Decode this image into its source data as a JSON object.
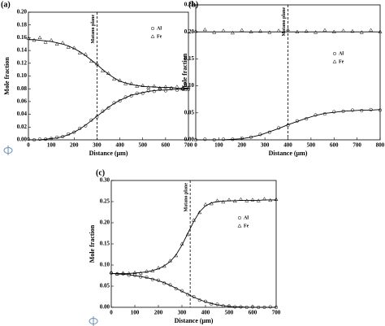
{
  "chart_data": [
    {
      "type": "scatter",
      "panel_label": "(a)",
      "xlabel": "Distance (μm)",
      "ylabel": "Mole fraction",
      "xlim": [
        0,
        700
      ],
      "xticks": [
        0,
        100,
        200,
        300,
        400,
        500,
        600,
        700
      ],
      "ylim": [
        0,
        0.2
      ],
      "yticks": [
        {
          "value": 0,
          "label": "0.00"
        },
        {
          "value": 0.02,
          "label": "0.02"
        },
        {
          "value": 0.04,
          "label": "0.04"
        },
        {
          "value": 0.06,
          "label": "0.06"
        },
        {
          "value": 0.08,
          "label": "0.08"
        },
        {
          "value": 0.1,
          "label": "0.10"
        },
        {
          "value": 0.12,
          "label": "0.12"
        },
        {
          "value": 0.14,
          "label": "0.14"
        },
        {
          "value": 0.16,
          "label": "0.16"
        },
        {
          "value": 0.18,
          "label": "0.18"
        },
        {
          "value": 0.2,
          "label": "0.20"
        }
      ],
      "annotation": {
        "x": 300,
        "text": "Matano plane"
      },
      "x": [
        0,
        25,
        50,
        75,
        100,
        125,
        150,
        175,
        200,
        225,
        250,
        275,
        300,
        325,
        350,
        375,
        400,
        425,
        450,
        475,
        500,
        525,
        550,
        575,
        600,
        625,
        650,
        675,
        700
      ],
      "series": [
        {
          "name": "Al",
          "marker": "circle",
          "color": "#000000",
          "values": [
            0.001,
            0.0,
            0.001,
            0.001,
            0.002,
            0.004,
            0.005,
            0.009,
            0.012,
            0.018,
            0.022,
            0.031,
            0.036,
            0.045,
            0.05,
            0.058,
            0.061,
            0.067,
            0.069,
            0.073,
            0.073,
            0.077,
            0.076,
            0.079,
            0.077,
            0.08,
            0.078,
            0.08,
            0.079
          ],
          "fit": [
            0.0,
            0.0,
            0.0,
            0.001,
            0.002,
            0.003,
            0.005,
            0.008,
            0.012,
            0.017,
            0.023,
            0.03,
            0.037,
            0.044,
            0.051,
            0.057,
            0.062,
            0.066,
            0.07,
            0.072,
            0.074,
            0.076,
            0.077,
            0.078,
            0.078,
            0.079,
            0.079,
            0.079,
            0.08
          ]
        },
        {
          "name": "Fe",
          "marker": "triangle",
          "color": "#000000",
          "values": [
            0.159,
            0.156,
            0.16,
            0.153,
            0.156,
            0.15,
            0.152,
            0.145,
            0.144,
            0.136,
            0.134,
            0.123,
            0.119,
            0.108,
            0.104,
            0.095,
            0.093,
            0.088,
            0.088,
            0.084,
            0.085,
            0.082,
            0.084,
            0.081,
            0.083,
            0.081,
            0.083,
            0.08,
            0.082
          ],
          "fit": [
            0.157,
            0.157,
            0.156,
            0.155,
            0.154,
            0.152,
            0.15,
            0.147,
            0.143,
            0.138,
            0.132,
            0.125,
            0.118,
            0.11,
            0.103,
            0.097,
            0.092,
            0.089,
            0.087,
            0.085,
            0.084,
            0.083,
            0.083,
            0.082,
            0.082,
            0.082,
            0.081,
            0.081,
            0.081
          ]
        }
      ]
    },
    {
      "type": "scatter",
      "panel_label": "(b)",
      "xlabel": "Distance (μm)",
      "ylabel": "Mole fraction",
      "xlim": [
        0,
        800
      ],
      "xticks": [
        0,
        100,
        200,
        300,
        400,
        500,
        600,
        700,
        800
      ],
      "ylim": [
        0,
        0.25
      ],
      "yticks": [
        {
          "value": 0,
          "label": "0.00"
        },
        {
          "value": 0.05,
          "label": "0.05"
        },
        {
          "value": 0.1,
          "label": "0.10"
        },
        {
          "value": 0.15,
          "label": "0.15"
        },
        {
          "value": 0.2,
          "label": "0.20"
        },
        {
          "value": 0.25,
          "label": "0.25"
        }
      ],
      "annotation": {
        "x": 400,
        "text": "Matano plane"
      },
      "x": [
        0,
        40,
        80,
        120,
        160,
        200,
        240,
        280,
        320,
        360,
        400,
        440,
        480,
        520,
        560,
        600,
        640,
        680,
        720,
        760,
        800
      ],
      "series": [
        {
          "name": "Al",
          "marker": "circle",
          "color": "#000000",
          "values": [
            0.0,
            0.001,
            0.0,
            0.001,
            0.001,
            0.003,
            0.005,
            0.01,
            0.014,
            0.022,
            0.027,
            0.035,
            0.039,
            0.046,
            0.048,
            0.052,
            0.053,
            0.055,
            0.054,
            0.056,
            0.055
          ],
          "fit": [
            0.0,
            0.0,
            0.0,
            0.0,
            0.001,
            0.002,
            0.005,
            0.009,
            0.015,
            0.021,
            0.028,
            0.034,
            0.04,
            0.045,
            0.049,
            0.051,
            0.053,
            0.054,
            0.055,
            0.055,
            0.056
          ]
        },
        {
          "name": "Fe",
          "marker": "triangle",
          "color": "#000000",
          "values": [
            0.201,
            0.204,
            0.199,
            0.202,
            0.198,
            0.203,
            0.2,
            0.201,
            0.199,
            0.202,
            0.204,
            0.2,
            0.201,
            0.199,
            0.203,
            0.2,
            0.202,
            0.201,
            0.199,
            0.203,
            0.2
          ],
          "fit": [
            0.2,
            0.2,
            0.2,
            0.2,
            0.2,
            0.2,
            0.2,
            0.2,
            0.2,
            0.2,
            0.2,
            0.2,
            0.2,
            0.2,
            0.2,
            0.2,
            0.2,
            0.2,
            0.2,
            0.2,
            0.2
          ]
        }
      ]
    },
    {
      "type": "scatter",
      "panel_label": "(c)",
      "xlabel": "Distance (μm)",
      "ylabel": "Mole fraction",
      "xlim": [
        0,
        700
      ],
      "xticks": [
        0,
        100,
        200,
        300,
        400,
        500,
        600,
        700
      ],
      "ylim": [
        0,
        0.3
      ],
      "yticks": [
        {
          "value": 0,
          "label": "0.00"
        },
        {
          "value": 0.05,
          "label": "0.05"
        },
        {
          "value": 0.1,
          "label": "0.10"
        },
        {
          "value": 0.15,
          "label": "0.15"
        },
        {
          "value": 0.2,
          "label": "0.20"
        },
        {
          "value": 0.25,
          "label": "0.25"
        },
        {
          "value": 0.3,
          "label": "0.30"
        }
      ],
      "annotation": {
        "x": 335,
        "text": "Matano plane"
      },
      "x": [
        0,
        25,
        50,
        75,
        100,
        125,
        150,
        175,
        200,
        225,
        250,
        275,
        300,
        325,
        350,
        375,
        400,
        425,
        450,
        475,
        500,
        525,
        550,
        575,
        600,
        625,
        650,
        675,
        700
      ],
      "series": [
        {
          "name": "Al",
          "marker": "circle",
          "color": "#000000",
          "values": [
            0.081,
            0.079,
            0.079,
            0.076,
            0.076,
            0.072,
            0.071,
            0.066,
            0.064,
            0.057,
            0.053,
            0.044,
            0.039,
            0.03,
            0.025,
            0.017,
            0.014,
            0.008,
            0.007,
            0.003,
            0.003,
            0.001,
            0.001,
            0.0,
            0.001,
            0.0,
            0.0,
            0.001,
            0.0
          ],
          "fit": [
            0.08,
            0.079,
            0.078,
            0.077,
            0.075,
            0.073,
            0.07,
            0.067,
            0.063,
            0.058,
            0.052,
            0.045,
            0.038,
            0.031,
            0.024,
            0.018,
            0.013,
            0.009,
            0.006,
            0.004,
            0.002,
            0.001,
            0.001,
            0,
            0,
            0,
            0,
            0,
            0
          ]
        },
        {
          "name": "Fe",
          "marker": "triangle",
          "color": "#000000",
          "values": [
            0.082,
            0.079,
            0.081,
            0.08,
            0.082,
            0.081,
            0.085,
            0.086,
            0.093,
            0.097,
            0.11,
            0.122,
            0.15,
            0.172,
            0.206,
            0.224,
            0.243,
            0.245,
            0.252,
            0.249,
            0.254,
            0.251,
            0.255,
            0.252,
            0.254,
            0.252,
            0.256,
            0.253,
            0.255
          ],
          "fit": [
            0.08,
            0.08,
            0.08,
            0.08,
            0.081,
            0.082,
            0.084,
            0.087,
            0.091,
            0.098,
            0.108,
            0.124,
            0.147,
            0.175,
            0.203,
            0.226,
            0.24,
            0.247,
            0.25,
            0.251,
            0.252,
            0.252,
            0.253,
            0.253,
            0.253,
            0.253,
            0.254,
            0.254,
            0.254
          ]
        }
      ]
    }
  ]
}
